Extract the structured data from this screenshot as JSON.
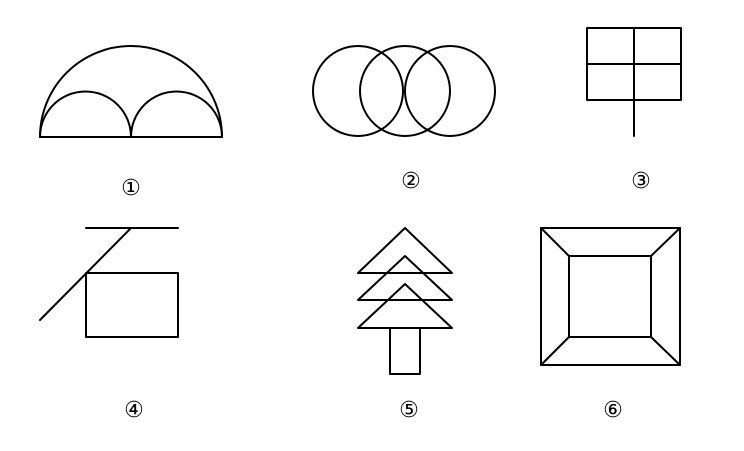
{
  "figures": [
    {
      "label": "①",
      "shape": "semicircle-with-two-inner-semicircles"
    },
    {
      "label": "②",
      "shape": "three-overlapping-circles"
    },
    {
      "label": "③",
      "shape": "square-grid-with-stem"
    },
    {
      "label": "④",
      "shape": "character-shi"
    },
    {
      "label": "⑤",
      "shape": "stacked-triangle-tree"
    },
    {
      "label": "⑥",
      "shape": "nested-squares-with-diagonals"
    }
  ]
}
